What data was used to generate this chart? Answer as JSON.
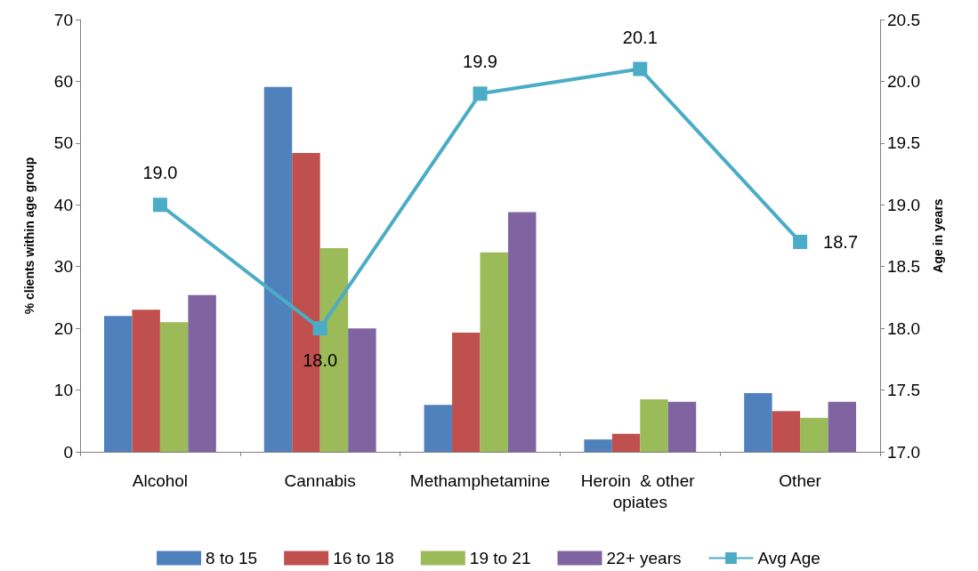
{
  "chart_data": {
    "type": "bar",
    "categories": [
      "Alcohol",
      "Cannabis",
      "Methamphetamine",
      "Heroin  & other opiates",
      "Other"
    ],
    "series": [
      {
        "name": "8 to 15",
        "color": "#4f81bd",
        "values": [
          22.0,
          59.1,
          7.6,
          2.0,
          9.5
        ]
      },
      {
        "name": "16 to 18",
        "color": "#c0504d",
        "values": [
          23.0,
          48.4,
          19.3,
          2.9,
          6.6
        ]
      },
      {
        "name": "19 to 21",
        "color": "#9bbb59",
        "values": [
          21.0,
          33.0,
          32.3,
          8.5,
          5.5
        ]
      },
      {
        "name": "22+ years",
        "color": "#8064a2",
        "values": [
          25.4,
          20.0,
          38.8,
          8.1,
          8.1
        ]
      },
      {
        "name": "Avg Age",
        "color": "#4bacc6",
        "type": "line",
        "axis": "y2",
        "marker": "square",
        "value_labels": [
          "19.0",
          "18.0",
          "19.9",
          "20.1",
          "18.7"
        ],
        "values": [
          19.0,
          18.0,
          19.9,
          20.1,
          18.7
        ]
      }
    ],
    "ylabel": "% clients within age group",
    "y2label": "Age in years",
    "ylim": [
      0,
      70
    ],
    "yticks": [
      0,
      10,
      20,
      30,
      40,
      50,
      60,
      70
    ],
    "y2lim": [
      17.0,
      20.5
    ],
    "y2ticks": [
      {
        "value": 17,
        "label": "17.0"
      },
      17.5,
      {
        "value": 18,
        "label": "18.0"
      },
      18.5,
      {
        "value": 19,
        "label": "19.0"
      },
      19.5,
      {
        "value": 20,
        "label": "20.0"
      },
      20.5
    ],
    "grid": false,
    "legend": "bottom"
  }
}
